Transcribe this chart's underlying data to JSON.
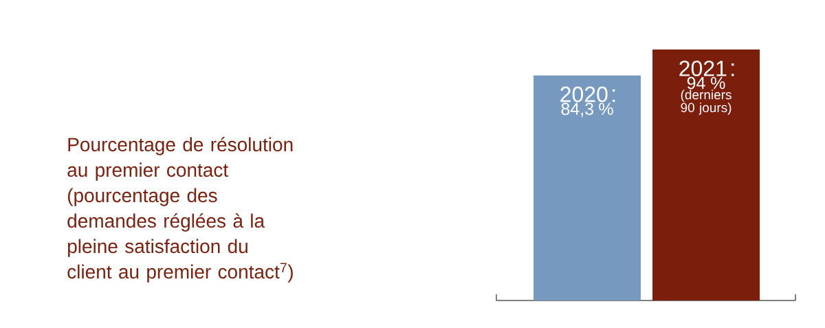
{
  "chart_data": {
    "type": "bar",
    "title": "Pourcentage de résolution au premier contact (pourcentage des demandes réglées à la pleine satisfaction du client au premier contact$^{7}$)",
    "categories": [
      "2020",
      "2021"
    ],
    "values": [
      84.3,
      94
    ],
    "colors": [
      "#7799bf",
      "#7b1e0c"
    ],
    "value_labels": [
      "84,3 %",
      "94 %"
    ],
    "annotations": [
      "(derniers 90 jours)"
    ]
  }
}
